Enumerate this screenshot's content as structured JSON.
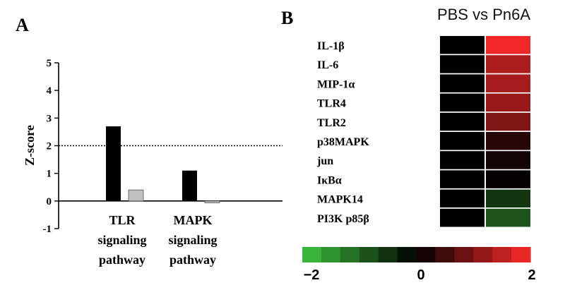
{
  "chart_data": [
    {
      "type": "bar",
      "panel": "A",
      "ylabel": "Z-score",
      "ylim": [
        -1,
        5
      ],
      "yticks": [
        "-1",
        "0",
        "1",
        "2",
        "3",
        "4",
        "5"
      ],
      "threshold": 2,
      "grid": false,
      "categories": [
        [
          "TLR",
          "signaling",
          "pathway"
        ],
        [
          "MAPK",
          "signaling",
          "pathway"
        ]
      ],
      "series": [
        {
          "color": "#000000",
          "values": [
            2.7,
            1.1
          ]
        },
        {
          "color": "#c0c0c0",
          "values": [
            0.4,
            -0.07
          ]
        }
      ]
    },
    {
      "type": "heatmap",
      "panel": "B",
      "title": "PBS vs Pn6A",
      "rows": [
        "IL-1β",
        "IL-6",
        "MIP-1α",
        "TLR4",
        "TLR2",
        "p38MAPK",
        "jun",
        "IκBα",
        "MAPK14",
        "PI3K p85β"
      ],
      "values": [
        [
          0,
          1.9
        ],
        [
          0,
          1.35
        ],
        [
          0,
          1.3
        ],
        [
          0,
          1.2
        ],
        [
          0,
          1.0
        ],
        [
          0,
          0.3
        ],
        [
          0,
          0.15
        ],
        [
          0,
          0.05
        ],
        [
          0,
          -0.55
        ],
        [
          0,
          -0.85
        ]
      ],
      "colorbar": {
        "min": -2,
        "max": 2,
        "labels": [
          "−2",
          "0",
          "2"
        ]
      },
      "colors": {
        "low": "#3fc43f",
        "mid": "#000000",
        "high": "#ff2a2a"
      }
    }
  ]
}
